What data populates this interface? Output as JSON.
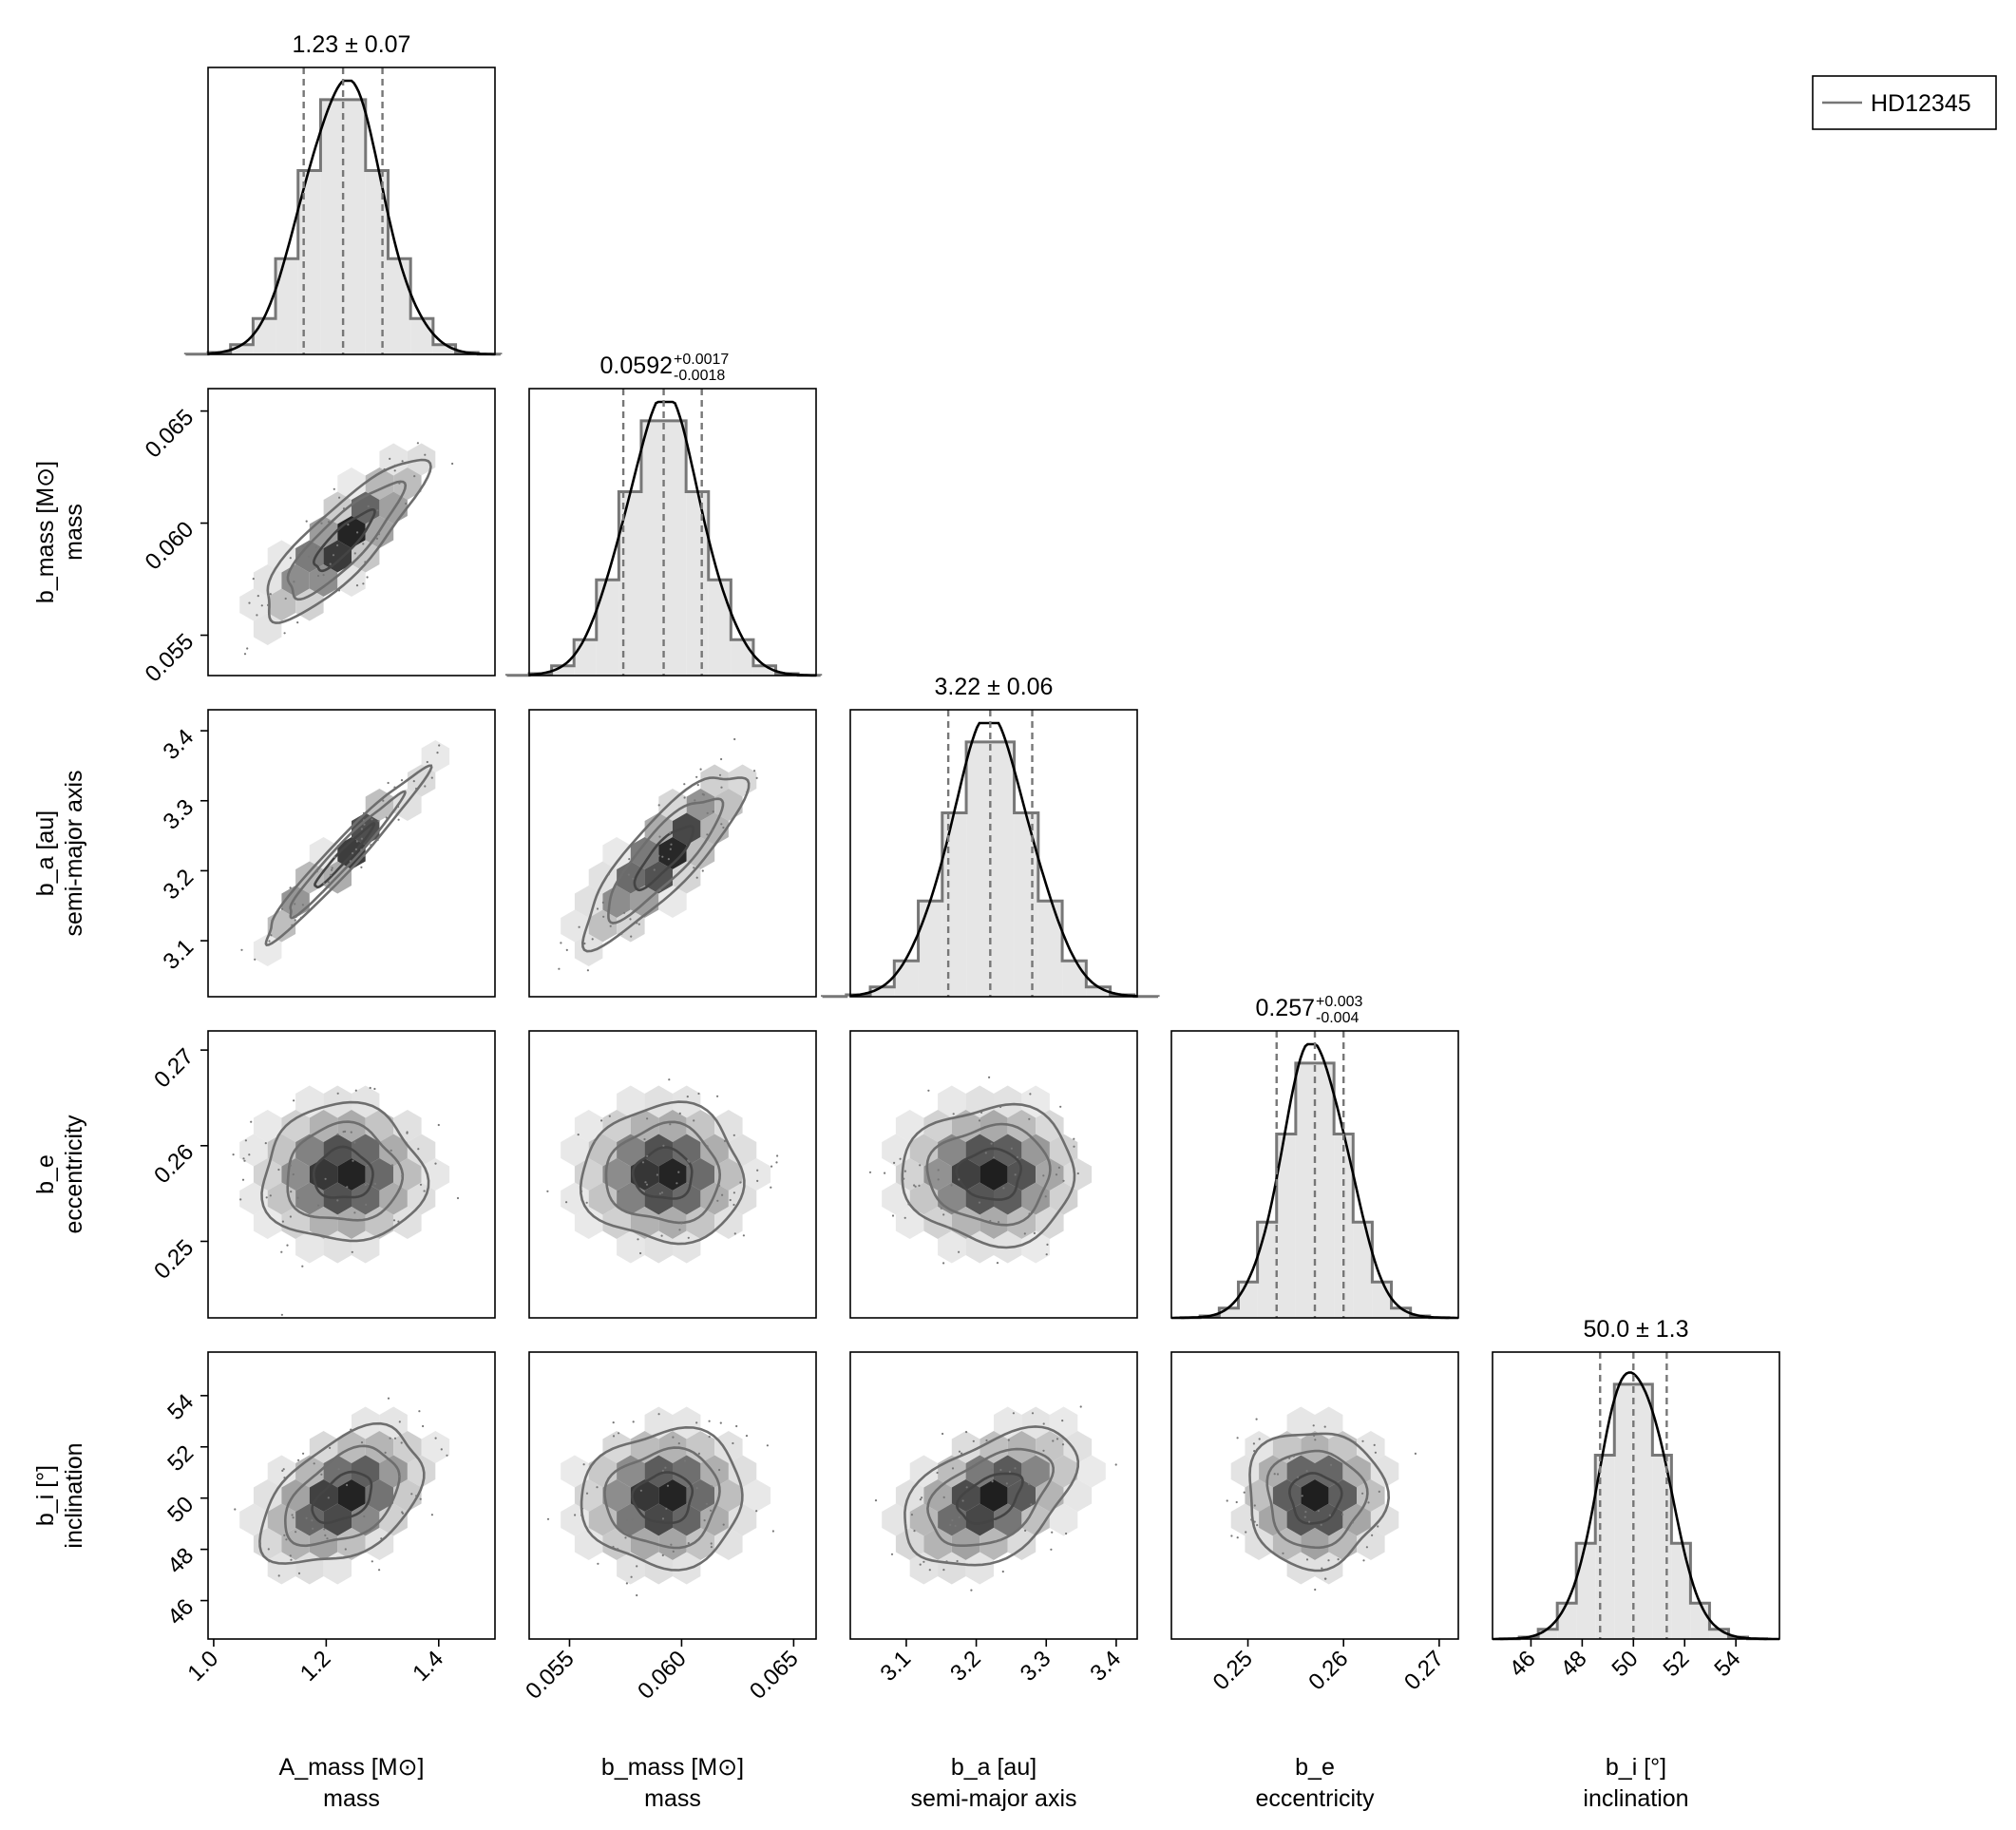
{
  "legend": {
    "entries": [
      {
        "label": "HD12345",
        "color": "#777777"
      }
    ],
    "placement": "top-right"
  },
  "chart_data": {
    "type": "corner",
    "series_name": "HD12345",
    "colors": {
      "hist_fill": "#e6e6e6",
      "hist_step": "#777777",
      "kde": "#000000",
      "quantile_line": "#777777",
      "contour": "#6e6e6e",
      "hexbin_dark": "#222222"
    },
    "parameters": [
      {
        "key": "A_mass",
        "label": "A_mass [M⊙]",
        "sublabel": "mass",
        "median": 1.23,
        "minus": 0.07,
        "plus": 0.07,
        "summary": {
          "main": "1.23 ± 0.07",
          "plus": "",
          "minus": ""
        },
        "range": [
          0.99,
          1.5
        ],
        "ticks": [
          1.0,
          1.2,
          1.4
        ],
        "tick_labels": [
          "1.0",
          "1.2",
          "1.4"
        ]
      },
      {
        "key": "b_mass",
        "label": "b_mass [M⊙]",
        "sublabel": "mass",
        "median": 0.0592,
        "minus": 0.0018,
        "plus": 0.0017,
        "summary": {
          "main": "0.0592",
          "plus": "+0.0017",
          "minus": "-0.0018"
        },
        "range": [
          0.0532,
          0.066
        ],
        "ticks": [
          0.055,
          0.06,
          0.065
        ],
        "tick_labels": [
          "0.055",
          "0.060",
          "0.065"
        ]
      },
      {
        "key": "b_a",
        "label": "b_a [au]",
        "sublabel": "semi-major axis",
        "median": 3.22,
        "minus": 0.06,
        "plus": 0.06,
        "summary": {
          "main": "3.22 ± 0.06",
          "plus": "",
          "minus": ""
        },
        "range": [
          3.02,
          3.43
        ],
        "ticks": [
          3.1,
          3.2,
          3.3,
          3.4
        ],
        "tick_labels": [
          "3.1",
          "3.2",
          "3.3",
          "3.4"
        ]
      },
      {
        "key": "b_e",
        "label": "b_e",
        "sublabel": "eccentricity",
        "median": 0.257,
        "minus": 0.004,
        "plus": 0.003,
        "summary": {
          "main": "0.257",
          "plus": "+0.003",
          "minus": "-0.004"
        },
        "range": [
          0.242,
          0.272
        ],
        "ticks": [
          0.25,
          0.26,
          0.27
        ],
        "tick_labels": [
          "0.25",
          "0.26",
          "0.27"
        ]
      },
      {
        "key": "b_i",
        "label": "b_i [°]",
        "sublabel": "inclination",
        "median": 50.0,
        "minus": 1.3,
        "plus": 1.3,
        "summary": {
          "main": "50.0 ± 1.3",
          "plus": "",
          "minus": ""
        },
        "range": [
          44.5,
          55.7
        ],
        "ticks": [
          46,
          48,
          50,
          52,
          54
        ],
        "tick_labels": [
          "46",
          "48",
          "50",
          "52",
          "54"
        ]
      }
    ],
    "correlations": {
      "b_mass|A_mass": 0.85,
      "b_a|A_mass": 0.97,
      "b_a|b_mass": 0.85,
      "b_e|A_mass": 0.0,
      "b_e|b_mass": 0.0,
      "b_e|b_a": 0.0,
      "b_i|A_mass": 0.45,
      "b_i|b_mass": 0.05,
      "b_i|b_a": 0.45,
      "b_i|b_e": 0.0
    }
  }
}
